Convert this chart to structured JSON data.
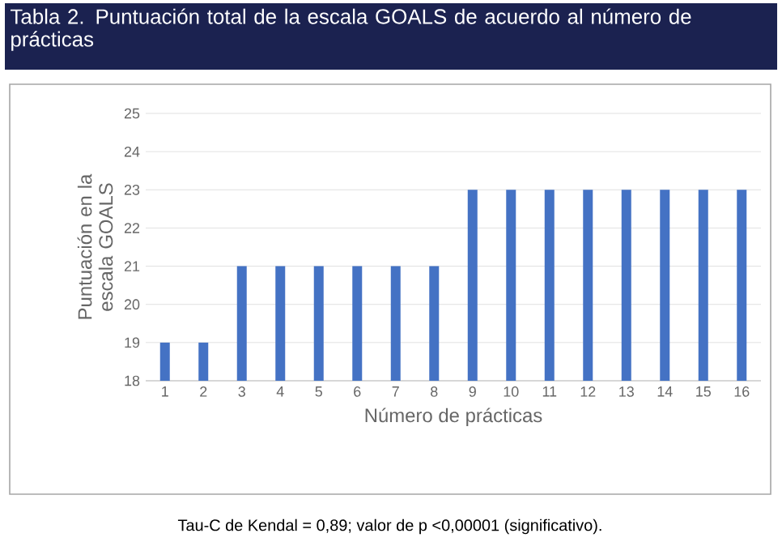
{
  "chart_data": {
    "type": "bar",
    "title": "Tabla 2.  Puntuación total de la escala GOALS de acuerdo al número de prácticas",
    "categories": [
      "1",
      "2",
      "3",
      "4",
      "5",
      "6",
      "7",
      "8",
      "9",
      "10",
      "11",
      "12",
      "13",
      "14",
      "15",
      "16"
    ],
    "values": [
      19,
      19,
      21,
      21,
      21,
      21,
      21,
      21,
      23,
      23,
      23,
      23,
      23,
      23,
      23,
      23
    ],
    "color": "#4472c4",
    "xlabel": "Número de prácticas",
    "ylabel": "Puntuación en la escala GOALS",
    "ylim": [
      18,
      25
    ],
    "yticks": [
      18,
      19,
      20,
      21,
      22,
      23,
      24,
      25
    ],
    "grid": "y",
    "annotations": [
      "Tau-C de Kendal = 0,89; valor de p <0,00001 (significativo)."
    ]
  }
}
